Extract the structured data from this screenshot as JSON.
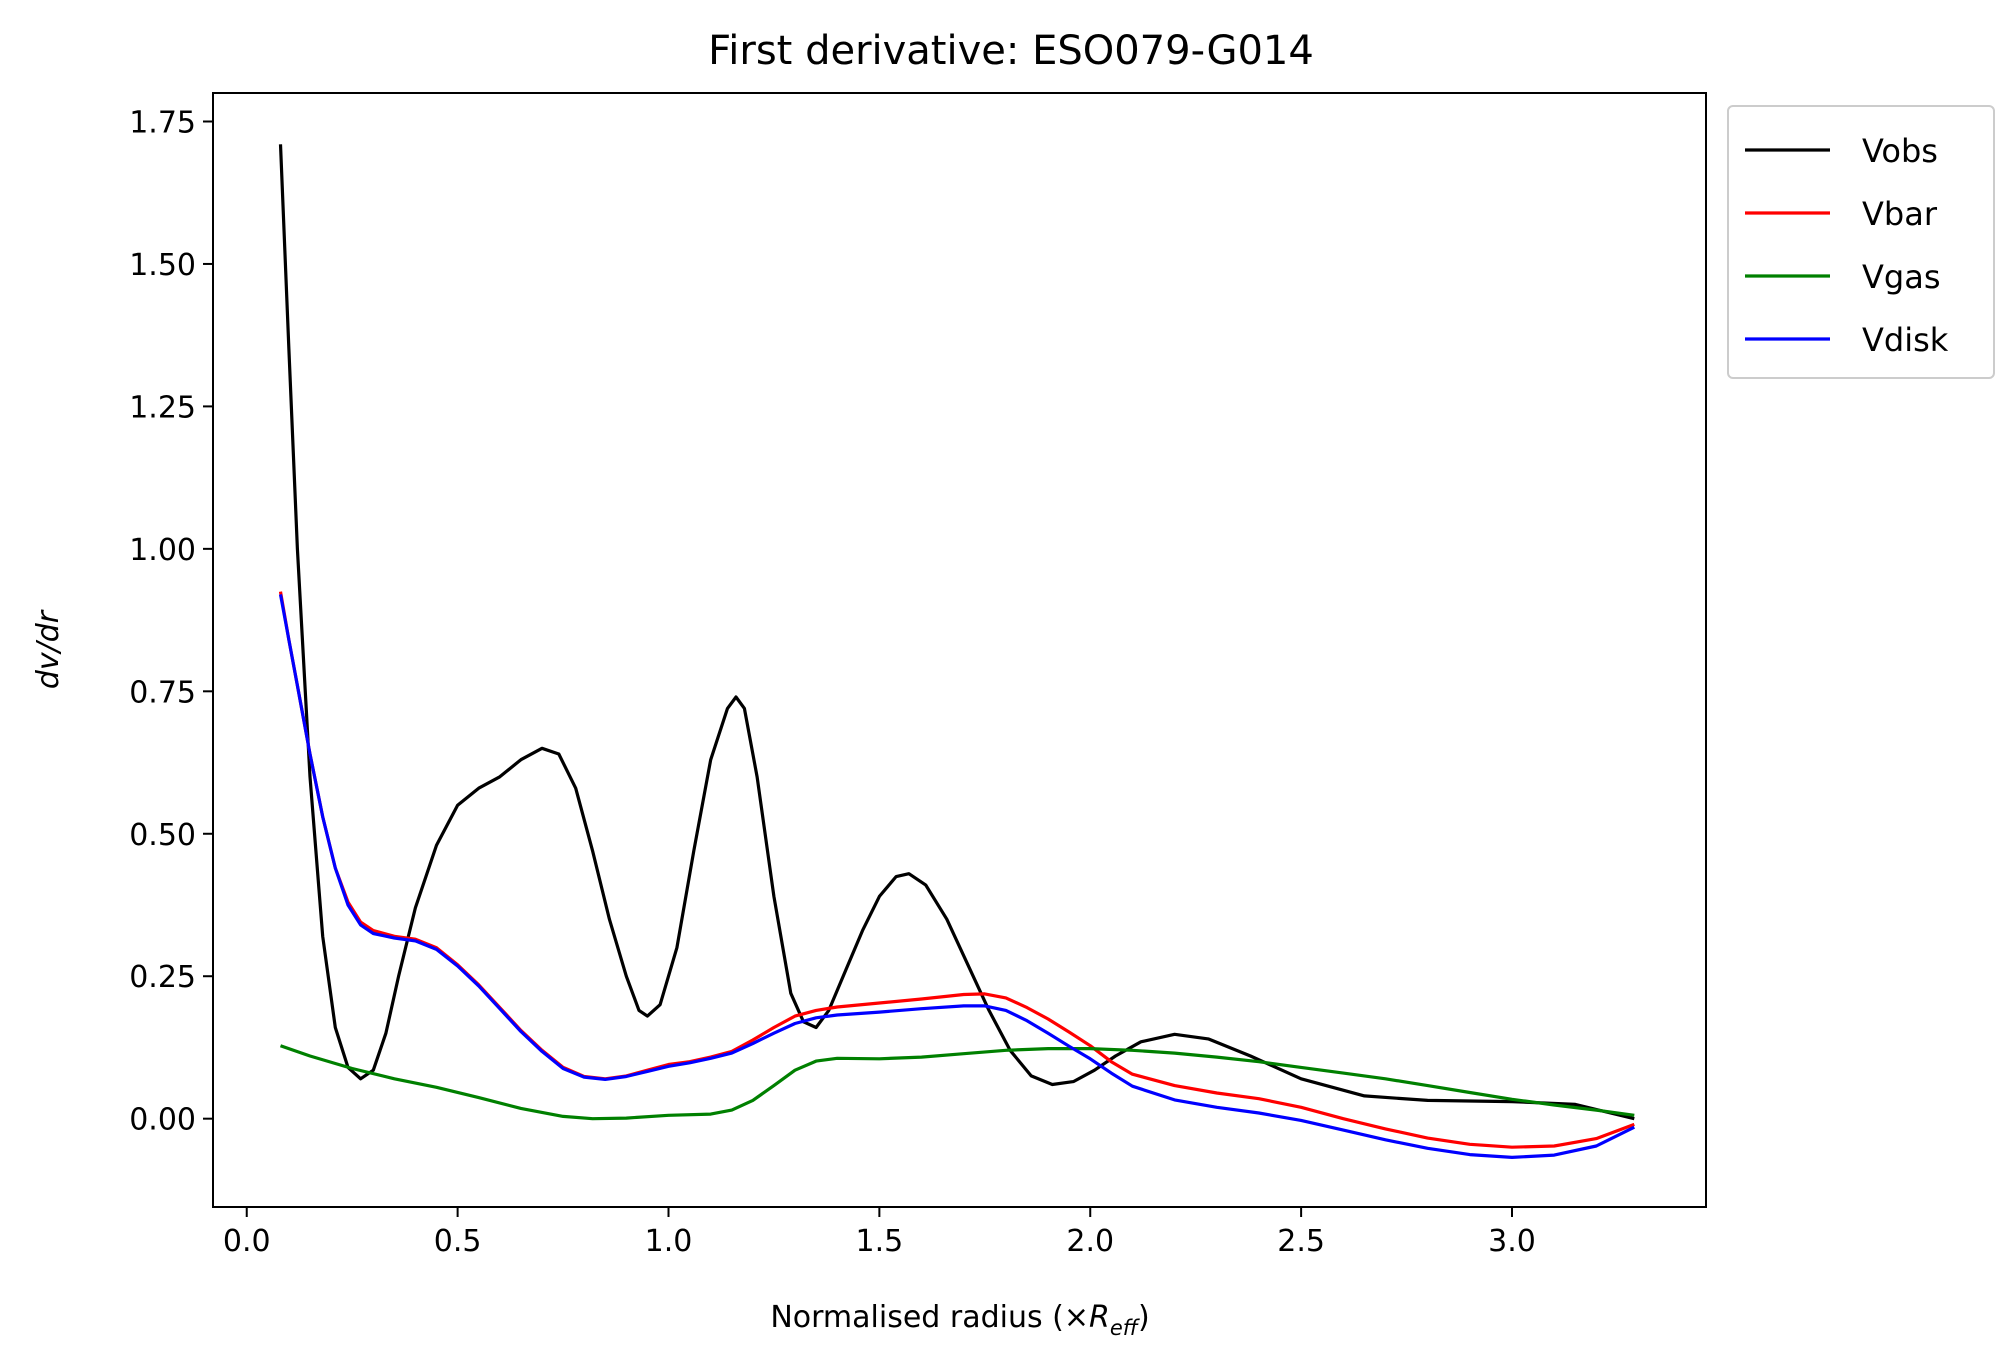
{
  "chart_data": {
    "type": "line",
    "title": "First derivative: ESO079-G014",
    "xlabel": {
      "prefix": "Normalised radius (×",
      "symbol": "R",
      "subscript": "eff",
      "suffix": ")"
    },
    "ylabel": "dv/dr",
    "xlim": [
      -0.08,
      3.46
    ],
    "ylim": [
      -0.155,
      1.8
    ],
    "xticks": [
      0.0,
      0.5,
      1.0,
      1.5,
      2.0,
      2.5,
      3.0
    ],
    "xtick_labels": [
      "0.0",
      "0.5",
      "1.0",
      "1.5",
      "2.0",
      "2.5",
      "3.0"
    ],
    "yticks": [
      0.0,
      0.25,
      0.5,
      0.75,
      1.0,
      1.25,
      1.5,
      1.75
    ],
    "ytick_labels": [
      "0.00",
      "0.25",
      "0.50",
      "0.75",
      "1.00",
      "1.25",
      "1.50",
      "1.75"
    ],
    "grid": false,
    "legend_position": "outside-top-right",
    "series": [
      {
        "name": "Vobs",
        "color": "#000000",
        "points": [
          [
            0.08,
            1.71
          ],
          [
            0.1,
            1.35
          ],
          [
            0.12,
            1.0
          ],
          [
            0.15,
            0.6
          ],
          [
            0.18,
            0.32
          ],
          [
            0.21,
            0.16
          ],
          [
            0.24,
            0.09
          ],
          [
            0.27,
            0.07
          ],
          [
            0.3,
            0.085
          ],
          [
            0.33,
            0.15
          ],
          [
            0.36,
            0.25
          ],
          [
            0.4,
            0.37
          ],
          [
            0.45,
            0.48
          ],
          [
            0.5,
            0.55
          ],
          [
            0.55,
            0.58
          ],
          [
            0.6,
            0.6
          ],
          [
            0.65,
            0.63
          ],
          [
            0.7,
            0.65
          ],
          [
            0.74,
            0.64
          ],
          [
            0.78,
            0.58
          ],
          [
            0.82,
            0.47
          ],
          [
            0.86,
            0.35
          ],
          [
            0.9,
            0.25
          ],
          [
            0.93,
            0.19
          ],
          [
            0.95,
            0.18
          ],
          [
            0.98,
            0.2
          ],
          [
            1.02,
            0.3
          ],
          [
            1.06,
            0.47
          ],
          [
            1.1,
            0.63
          ],
          [
            1.14,
            0.72
          ],
          [
            1.16,
            0.74
          ],
          [
            1.18,
            0.72
          ],
          [
            1.21,
            0.6
          ],
          [
            1.25,
            0.39
          ],
          [
            1.29,
            0.22
          ],
          [
            1.32,
            0.17
          ],
          [
            1.35,
            0.16
          ],
          [
            1.38,
            0.19
          ],
          [
            1.42,
            0.26
          ],
          [
            1.46,
            0.33
          ],
          [
            1.5,
            0.39
          ],
          [
            1.54,
            0.425
          ],
          [
            1.57,
            0.43
          ],
          [
            1.61,
            0.41
          ],
          [
            1.66,
            0.35
          ],
          [
            1.71,
            0.27
          ],
          [
            1.76,
            0.19
          ],
          [
            1.81,
            0.12
          ],
          [
            1.86,
            0.075
          ],
          [
            1.91,
            0.06
          ],
          [
            1.96,
            0.065
          ],
          [
            2.01,
            0.085
          ],
          [
            2.06,
            0.11
          ],
          [
            2.12,
            0.135
          ],
          [
            2.2,
            0.148
          ],
          [
            2.28,
            0.14
          ],
          [
            2.38,
            0.11
          ],
          [
            2.5,
            0.07
          ],
          [
            2.65,
            0.04
          ],
          [
            2.8,
            0.032
          ],
          [
            3.0,
            0.03
          ],
          [
            3.15,
            0.025
          ],
          [
            3.29,
            0.0
          ]
        ]
      },
      {
        "name": "Vbar",
        "color": "#ff0000",
        "points": [
          [
            0.08,
            0.925
          ],
          [
            0.1,
            0.84
          ],
          [
            0.12,
            0.76
          ],
          [
            0.15,
            0.64
          ],
          [
            0.18,
            0.53
          ],
          [
            0.21,
            0.44
          ],
          [
            0.24,
            0.38
          ],
          [
            0.27,
            0.345
          ],
          [
            0.3,
            0.33
          ],
          [
            0.35,
            0.32
          ],
          [
            0.4,
            0.315
          ],
          [
            0.45,
            0.3
          ],
          [
            0.5,
            0.27
          ],
          [
            0.55,
            0.235
          ],
          [
            0.6,
            0.195
          ],
          [
            0.65,
            0.155
          ],
          [
            0.7,
            0.12
          ],
          [
            0.75,
            0.09
          ],
          [
            0.8,
            0.074
          ],
          [
            0.85,
            0.07
          ],
          [
            0.9,
            0.075
          ],
          [
            0.95,
            0.085
          ],
          [
            1.0,
            0.095
          ],
          [
            1.05,
            0.1
          ],
          [
            1.1,
            0.108
          ],
          [
            1.15,
            0.118
          ],
          [
            1.2,
            0.138
          ],
          [
            1.25,
            0.16
          ],
          [
            1.3,
            0.18
          ],
          [
            1.35,
            0.19
          ],
          [
            1.4,
            0.196
          ],
          [
            1.5,
            0.203
          ],
          [
            1.6,
            0.21
          ],
          [
            1.7,
            0.218
          ],
          [
            1.75,
            0.219
          ],
          [
            1.8,
            0.212
          ],
          [
            1.85,
            0.195
          ],
          [
            1.9,
            0.175
          ],
          [
            1.95,
            0.152
          ],
          [
            2.0,
            0.128
          ],
          [
            2.05,
            0.1
          ],
          [
            2.1,
            0.078
          ],
          [
            2.2,
            0.058
          ],
          [
            2.3,
            0.045
          ],
          [
            2.4,
            0.035
          ],
          [
            2.5,
            0.02
          ],
          [
            2.6,
            0.0
          ],
          [
            2.7,
            -0.018
          ],
          [
            2.8,
            -0.034
          ],
          [
            2.9,
            -0.045
          ],
          [
            3.0,
            -0.05
          ],
          [
            3.1,
            -0.048
          ],
          [
            3.2,
            -0.035
          ],
          [
            3.29,
            -0.01
          ]
        ]
      },
      {
        "name": "Vgas",
        "color": "#008000",
        "points": [
          [
            0.08,
            0.128
          ],
          [
            0.15,
            0.11
          ],
          [
            0.25,
            0.088
          ],
          [
            0.35,
            0.07
          ],
          [
            0.45,
            0.055
          ],
          [
            0.55,
            0.037
          ],
          [
            0.65,
            0.018
          ],
          [
            0.75,
            0.004
          ],
          [
            0.82,
            0.0
          ],
          [
            0.9,
            0.001
          ],
          [
            1.0,
            0.006
          ],
          [
            1.1,
            0.008
          ],
          [
            1.15,
            0.015
          ],
          [
            1.2,
            0.032
          ],
          [
            1.25,
            0.058
          ],
          [
            1.3,
            0.085
          ],
          [
            1.35,
            0.101
          ],
          [
            1.4,
            0.106
          ],
          [
            1.5,
            0.105
          ],
          [
            1.6,
            0.108
          ],
          [
            1.7,
            0.114
          ],
          [
            1.8,
            0.12
          ],
          [
            1.9,
            0.123
          ],
          [
            2.0,
            0.123
          ],
          [
            2.1,
            0.12
          ],
          [
            2.2,
            0.115
          ],
          [
            2.3,
            0.108
          ],
          [
            2.4,
            0.1
          ],
          [
            2.5,
            0.09
          ],
          [
            2.6,
            0.08
          ],
          [
            2.7,
            0.07
          ],
          [
            2.8,
            0.058
          ],
          [
            2.9,
            0.046
          ],
          [
            3.0,
            0.034
          ],
          [
            3.1,
            0.024
          ],
          [
            3.2,
            0.015
          ],
          [
            3.29,
            0.006
          ]
        ]
      },
      {
        "name": "Vdisk",
        "color": "#0000ff",
        "points": [
          [
            0.08,
            0.92
          ],
          [
            0.1,
            0.84
          ],
          [
            0.12,
            0.76
          ],
          [
            0.15,
            0.64
          ],
          [
            0.18,
            0.53
          ],
          [
            0.21,
            0.44
          ],
          [
            0.24,
            0.375
          ],
          [
            0.27,
            0.34
          ],
          [
            0.3,
            0.325
          ],
          [
            0.35,
            0.317
          ],
          [
            0.4,
            0.312
          ],
          [
            0.45,
            0.297
          ],
          [
            0.5,
            0.268
          ],
          [
            0.55,
            0.233
          ],
          [
            0.6,
            0.193
          ],
          [
            0.65,
            0.153
          ],
          [
            0.7,
            0.118
          ],
          [
            0.75,
            0.088
          ],
          [
            0.8,
            0.073
          ],
          [
            0.85,
            0.069
          ],
          [
            0.9,
            0.074
          ],
          [
            0.95,
            0.083
          ],
          [
            1.0,
            0.092
          ],
          [
            1.05,
            0.098
          ],
          [
            1.1,
            0.106
          ],
          [
            1.15,
            0.115
          ],
          [
            1.2,
            0.132
          ],
          [
            1.25,
            0.15
          ],
          [
            1.3,
            0.167
          ],
          [
            1.35,
            0.177
          ],
          [
            1.4,
            0.182
          ],
          [
            1.5,
            0.187
          ],
          [
            1.6,
            0.193
          ],
          [
            1.7,
            0.198
          ],
          [
            1.75,
            0.198
          ],
          [
            1.8,
            0.19
          ],
          [
            1.85,
            0.172
          ],
          [
            1.9,
            0.15
          ],
          [
            1.95,
            0.127
          ],
          [
            2.0,
            0.105
          ],
          [
            2.05,
            0.08
          ],
          [
            2.1,
            0.057
          ],
          [
            2.2,
            0.033
          ],
          [
            2.3,
            0.02
          ],
          [
            2.4,
            0.01
          ],
          [
            2.5,
            -0.003
          ],
          [
            2.6,
            -0.02
          ],
          [
            2.7,
            -0.037
          ],
          [
            2.8,
            -0.052
          ],
          [
            2.9,
            -0.063
          ],
          [
            3.0,
            -0.068
          ],
          [
            3.1,
            -0.064
          ],
          [
            3.2,
            -0.048
          ],
          [
            3.29,
            -0.015
          ]
        ]
      }
    ]
  }
}
